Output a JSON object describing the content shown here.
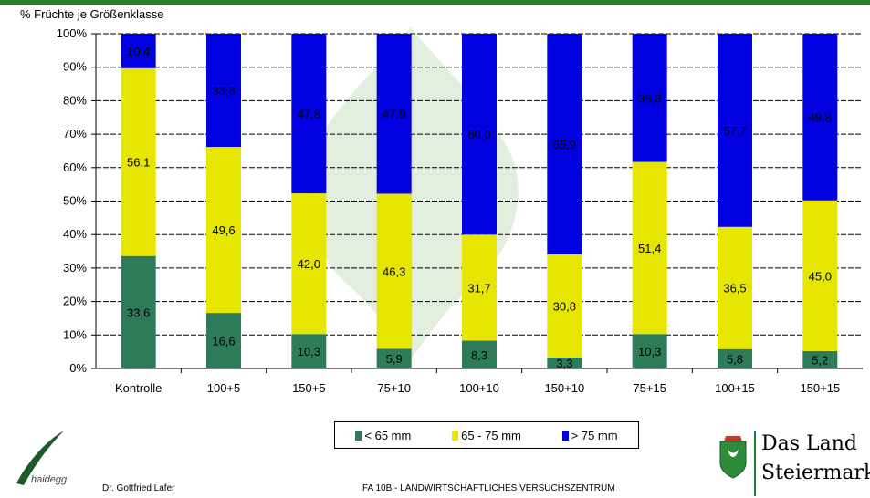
{
  "y_axis_title": "% Früchte je Größenklasse",
  "chart_data": {
    "type": "bar",
    "stacked": true,
    "percent_stacked": true,
    "categories": [
      "Kontrolle",
      "100+5",
      "150+5",
      "75+10",
      "100+10",
      "150+10",
      "75+15",
      "100+15",
      "150+15"
    ],
    "series": [
      {
        "name": "< 65 mm",
        "color": "#2e7b5a",
        "values": [
          33.6,
          16.6,
          10.3,
          5.9,
          8.3,
          3.3,
          10.3,
          5.8,
          5.2
        ]
      },
      {
        "name": "65 - 75 mm",
        "color": "#e6e600",
        "values": [
          56.1,
          49.6,
          42.0,
          46.3,
          31.7,
          30.8,
          51.4,
          36.5,
          45.0
        ]
      },
      {
        "name": "> 75 mm",
        "color": "#0000e0",
        "values": [
          10.4,
          33.8,
          47.8,
          47.9,
          60.0,
          65.9,
          38.3,
          57.7,
          49.8
        ]
      }
    ],
    "data_labels": [
      [
        "33,6",
        "16,6",
        "10,3",
        "5,9",
        "8,3",
        "3,3",
        "10,3",
        "5,8",
        "5,2"
      ],
      [
        "56,1",
        "49,6",
        "42,0",
        "46,3",
        "31,7",
        "30,8",
        "51,4",
        "36,5",
        "45,0"
      ],
      [
        "10,4",
        "33,8",
        "47,8",
        "47,9",
        "60,0",
        "65,9",
        "38,3",
        "57,7",
        "49,8"
      ]
    ],
    "y_ticks": [
      "0%",
      "10%",
      "20%",
      "30%",
      "40%",
      "50%",
      "60%",
      "70%",
      "80%",
      "90%",
      "100%"
    ],
    "ylim": [
      0,
      100
    ],
    "grid": true,
    "legend_position": "bottom"
  },
  "footer": {
    "author": "Dr. Gottfried Lafer",
    "institution": "FA 10B - LANDWIRTSCHAFTLICHES VERSUCHSZENTRUM"
  },
  "logos": {
    "left_text": "haidegg",
    "right_line1": "Das Land",
    "right_line2": "Steiermark"
  }
}
